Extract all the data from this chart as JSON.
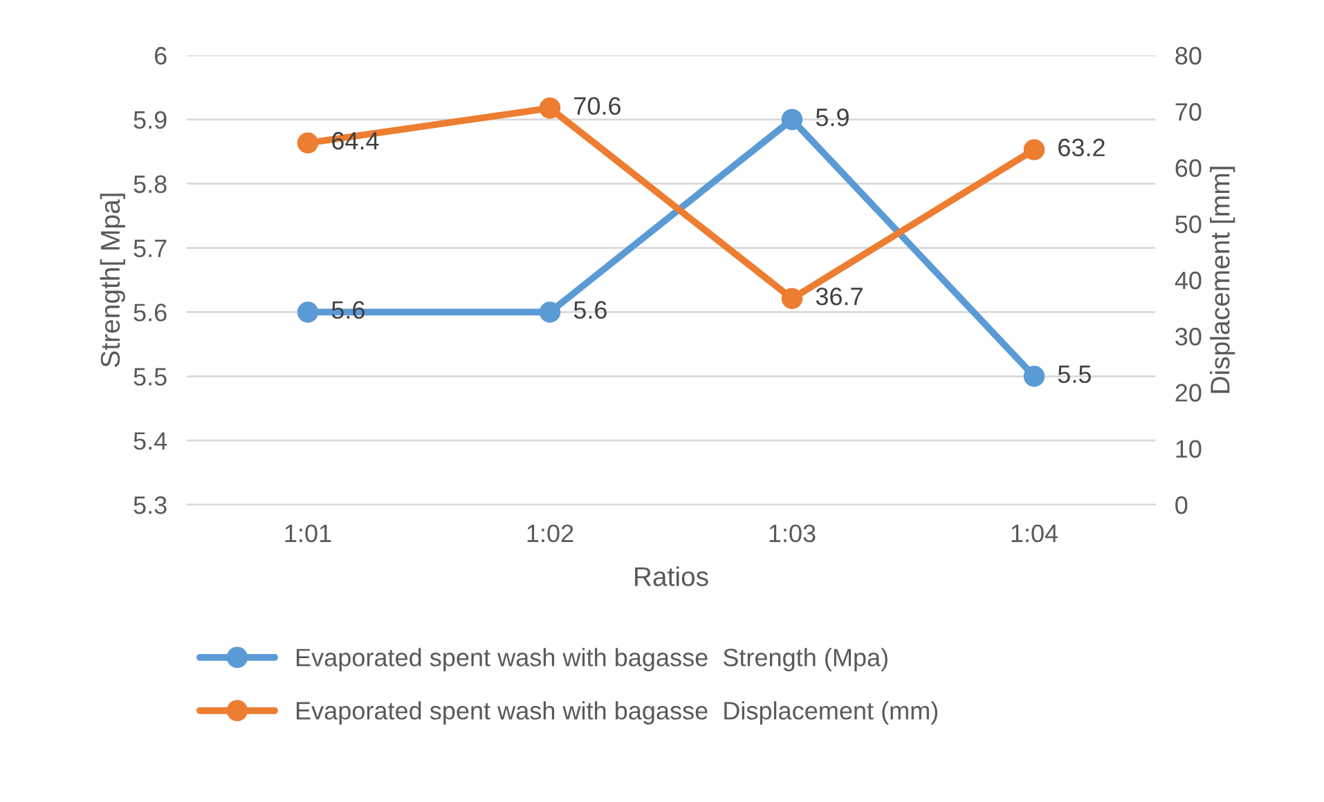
{
  "chart_data": {
    "type": "line",
    "xlabel": "Ratios",
    "ylabel": "Strength[ Mpa]",
    "y2label": "Displacement [mm]",
    "categories": [
      "1:01",
      "1:02",
      "1:03",
      "1:04"
    ],
    "series": [
      {
        "name": "Evaporated spent wash with bagasse  Strength (Mpa)",
        "color": "#5b9bd5",
        "values": [
          5.6,
          5.6,
          5.9,
          5.5
        ]
      },
      {
        "name": "Evaporated spent wash with bagasse  Displacement (mm)",
        "color": "#ed7d31",
        "values": [
          64.4,
          70.6,
          36.7,
          63.2
        ],
        "axis": "y2"
      }
    ],
    "ylim": [
      5.3,
      6
    ],
    "yticks": [
      5.3,
      5.4,
      5.5,
      5.6,
      5.7,
      5.8,
      5.9,
      6
    ],
    "y2lim": [
      0,
      80
    ],
    "y2ticks": [
      0,
      10,
      20,
      30,
      40,
      50,
      60,
      70,
      80
    ],
    "grid": "y",
    "legend": "bottom",
    "marker": "circle",
    "line_style": "solid",
    "data_labels": true
  }
}
